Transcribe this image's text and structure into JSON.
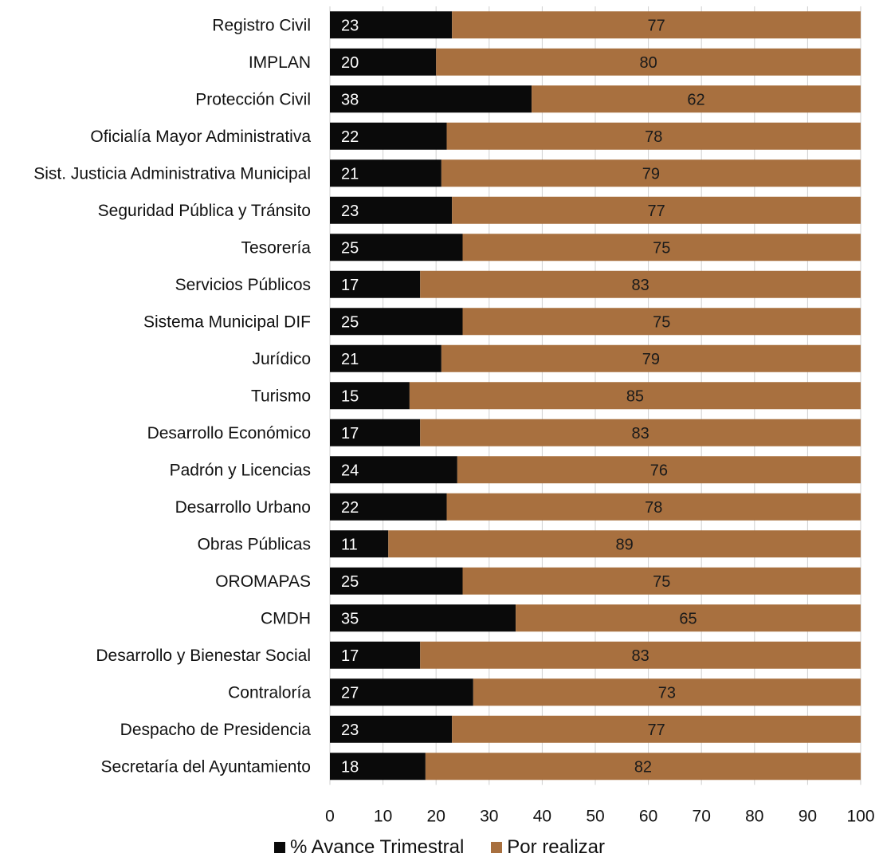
{
  "chart_data": {
    "type": "bar",
    "orientation": "horizontal",
    "stacked": true,
    "categories": [
      "Registro Civil",
      "IMPLAN",
      "Protección Civil",
      "Oficialía Mayor Administrativa",
      "Sist. Justicia Administrativa Municipal",
      "Seguridad Pública y Tránsito",
      "Tesorería",
      "Servicios Públicos",
      "Sistema Municipal DIF",
      "Jurídico",
      "Turismo",
      "Desarrollo Económico",
      "Padrón y Licencias",
      "Desarrollo Urbano",
      "Obras Públicas",
      "OROMAPAS",
      "CMDH",
      "Desarrollo y Bienestar Social",
      "Contraloría",
      "Despacho de Presidencia",
      "Secretaría del Ayuntamiento"
    ],
    "series": [
      {
        "name": "% Avance Trimestral",
        "color": "#0a0a0a",
        "values": [
          23,
          20,
          38,
          22,
          21,
          23,
          25,
          17,
          25,
          21,
          15,
          17,
          24,
          22,
          11,
          25,
          35,
          17,
          27,
          23,
          18
        ]
      },
      {
        "name": "Por realizar",
        "color": "#a8703f",
        "values": [
          77,
          80,
          62,
          78,
          79,
          77,
          75,
          83,
          75,
          79,
          85,
          83,
          76,
          78,
          89,
          75,
          65,
          83,
          73,
          77,
          82
        ]
      }
    ],
    "xlim": [
      0,
      100
    ],
    "xticks": [
      "0",
      "10",
      "20",
      "30",
      "40",
      "50",
      "60",
      "70",
      "80",
      "90",
      "100"
    ],
    "grid": true,
    "legend_position": "bottom",
    "title": "",
    "xlabel": "",
    "ylabel": ""
  }
}
